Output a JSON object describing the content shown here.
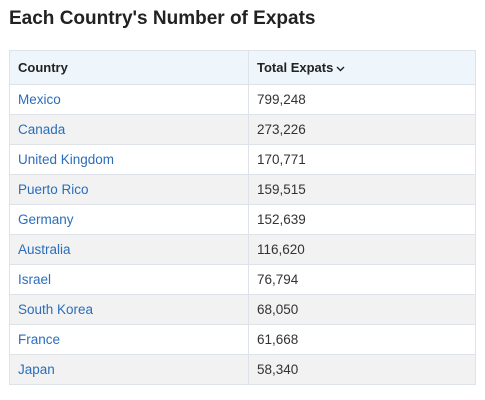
{
  "header": {
    "title": "Each Country's Number of Expats"
  },
  "table": {
    "headers": [
      "Country",
      "Total Expats"
    ],
    "rows": [
      [
        "Mexico",
        "799,248"
      ],
      [
        "Canada",
        "273,226"
      ],
      [
        "United Kingdom",
        "170,771"
      ],
      [
        "Puerto Rico",
        "159,515"
      ],
      [
        "Germany",
        "152,639"
      ],
      [
        "Australia",
        "116,620"
      ],
      [
        "Israel",
        "76,794"
      ],
      [
        "South Korea",
        "68,050"
      ],
      [
        "France",
        "61,668"
      ],
      [
        "Japan",
        "58,340"
      ]
    ]
  }
}
